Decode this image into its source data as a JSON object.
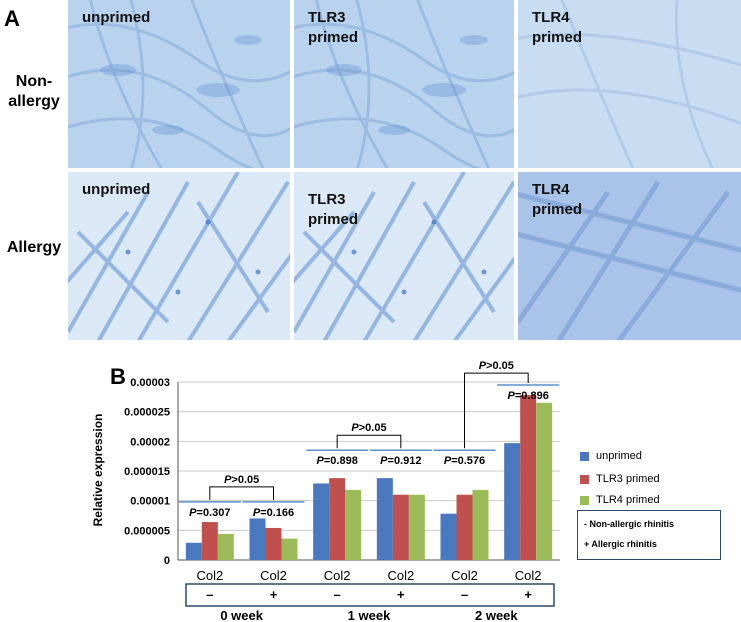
{
  "panel_a": {
    "letter": "A",
    "rows": [
      {
        "label": "Non-\nallergy",
        "images": [
          {
            "caption": "unprimed"
          },
          {
            "caption": "TLR3\nprimed"
          },
          {
            "caption": "TLR4\nprimed"
          }
        ]
      },
      {
        "label": "Allergy",
        "images": [
          {
            "caption": "unprimed"
          },
          {
            "caption": "TLR3\nprimed"
          },
          {
            "caption": "TLR4\nprimed"
          }
        ]
      }
    ]
  },
  "panel_b": {
    "letter": "B",
    "legend": {
      "series": [
        {
          "name": "unprimed",
          "color": "#4a78be"
        },
        {
          "name": "TLR3 primed",
          "color": "#c0504d"
        },
        {
          "name": "TLR4 primed",
          "color": "#9bbb59"
        }
      ],
      "notes": [
        "- Non-allergic rhinitis",
        "+ Allergic rhinitis"
      ]
    },
    "annotations": [
      {
        "text": "P>0.05",
        "group": 0
      },
      {
        "text": "P>0.05",
        "group": 1
      },
      {
        "text": "P>0.05",
        "group": 2
      },
      {
        "text": "P=0.307",
        "category": 0
      },
      {
        "text": "P=0.166",
        "category": 1
      },
      {
        "text": "P=0.898",
        "category": 2
      },
      {
        "text": "P=0.912",
        "category": 3
      },
      {
        "text": "P=0.576",
        "category": 4
      },
      {
        "text": "P=0.896",
        "category": 5
      }
    ]
  },
  "chart_data": {
    "type": "bar",
    "categories": [
      "Col2",
      "Col2",
      "Col2",
      "Col2",
      "Col2",
      "Col2"
    ],
    "signs": [
      "–",
      "+",
      "–",
      "+",
      "–",
      "+"
    ],
    "groups": [
      "0 week",
      "1 week",
      "2 week"
    ],
    "ylabel": "Relative expression",
    "yticks": [
      "0",
      "0.000005",
      "0.00001",
      "0.000015",
      "0.00002",
      "0.000025",
      "0.00003"
    ],
    "ylim": [
      0,
      3e-05
    ],
    "series": [
      {
        "name": "unprimed",
        "color": "#4a78be",
        "values": [
          2.9e-06,
          7e-06,
          1.29e-05,
          1.38e-05,
          7.8e-06,
          1.97e-05
        ]
      },
      {
        "name": "TLR3 primed",
        "color": "#c0504d",
        "values": [
          6.4e-06,
          5.4e-06,
          1.38e-05,
          1.1e-05,
          1.1e-05,
          2.78e-05
        ]
      },
      {
        "name": "TLR4 primed",
        "color": "#9bbb59",
        "values": [
          4.4e-06,
          3.6e-06,
          1.18e-05,
          1.1e-05,
          1.18e-05,
          2.65e-05
        ]
      }
    ]
  }
}
